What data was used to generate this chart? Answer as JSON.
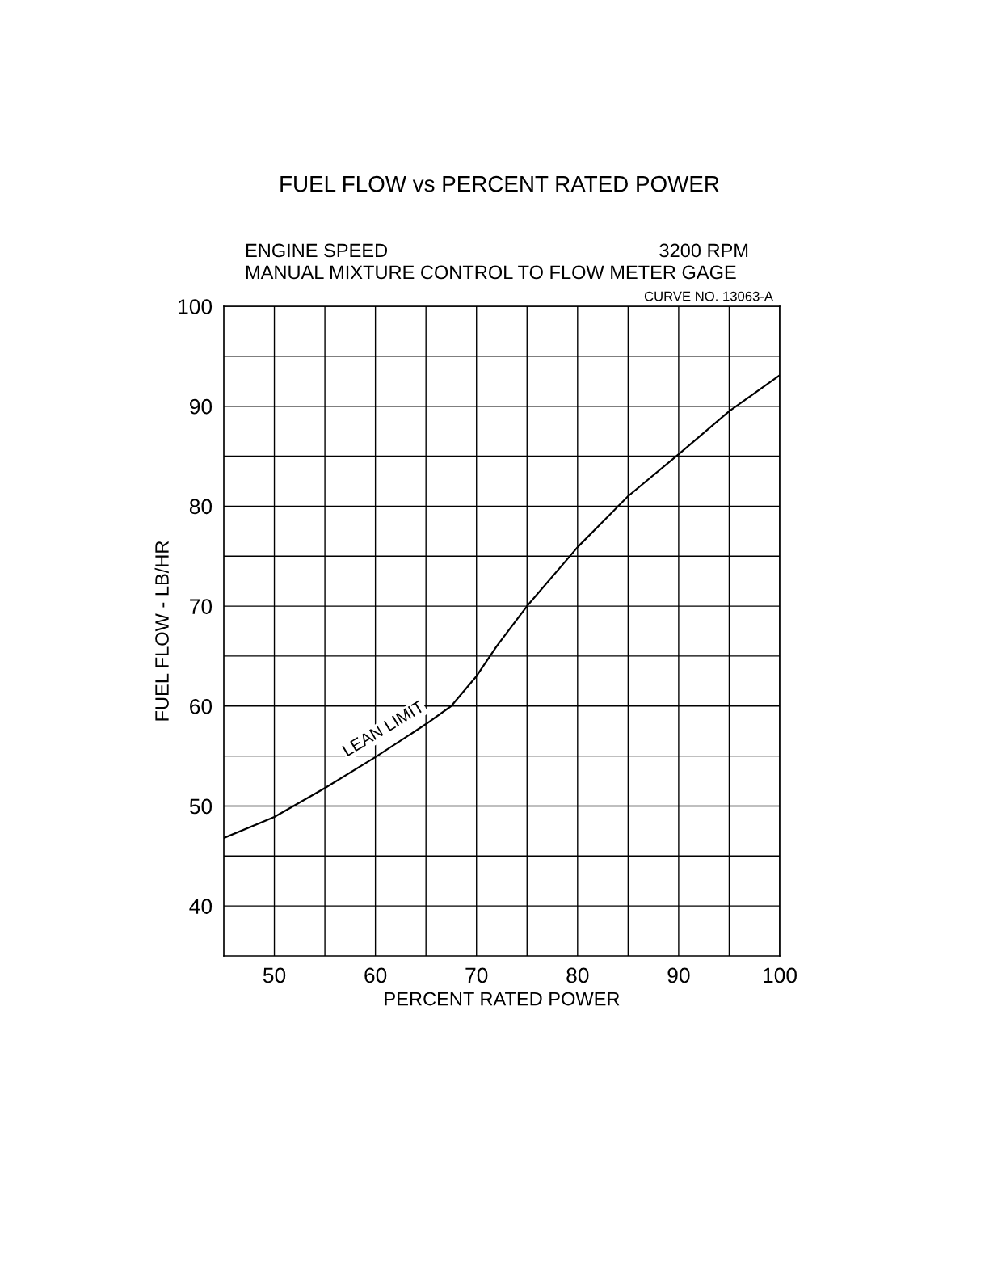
{
  "chart_data": {
    "type": "line",
    "title": "FUEL FLOW vs PERCENT RATED POWER",
    "xlabel": "PERCENT RATED POWER",
    "ylabel": "FUEL FLOW - LB/HR",
    "x": [
      45,
      50,
      55,
      60,
      65,
      67.5,
      70,
      72,
      75,
      80,
      85,
      90,
      95,
      100
    ],
    "series": [
      {
        "color": "#000000",
        "values": [
          46.8,
          48.9,
          51.8,
          54.9,
          58.2,
          60.0,
          63.0,
          66.0,
          70.0,
          75.9,
          81.0,
          85.2,
          89.5,
          93.1
        ]
      }
    ],
    "xlim": [
      45,
      100
    ],
    "ylim": [
      35,
      100
    ],
    "xticks": [
      50,
      {
        "value": 55,
        "label": null
      },
      60,
      {
        "value": 65,
        "label": null
      },
      70,
      {
        "value": 75,
        "label": null
      },
      80,
      {
        "value": 85,
        "label": null
      },
      90,
      {
        "value": 95,
        "label": null
      },
      100
    ],
    "yticks": [
      40,
      {
        "value": 45,
        "label": null
      },
      50,
      {
        "value": 55,
        "label": null
      },
      60,
      {
        "value": 65,
        "label": null
      },
      70,
      {
        "value": 75,
        "label": null
      },
      80,
      {
        "value": 85,
        "label": null
      },
      90,
      {
        "value": 95,
        "label": null
      },
      100
    ],
    "grid": true,
    "marker": "none",
    "line_style": "solid",
    "annotations": [
      "ENGINE SPEED",
      "3200 RPM",
      "MANUAL MIXTURE CONTROL TO FLOW METER GAGE",
      "CURVE NO. 13063-A",
      "LEAN LIMIT"
    ]
  }
}
